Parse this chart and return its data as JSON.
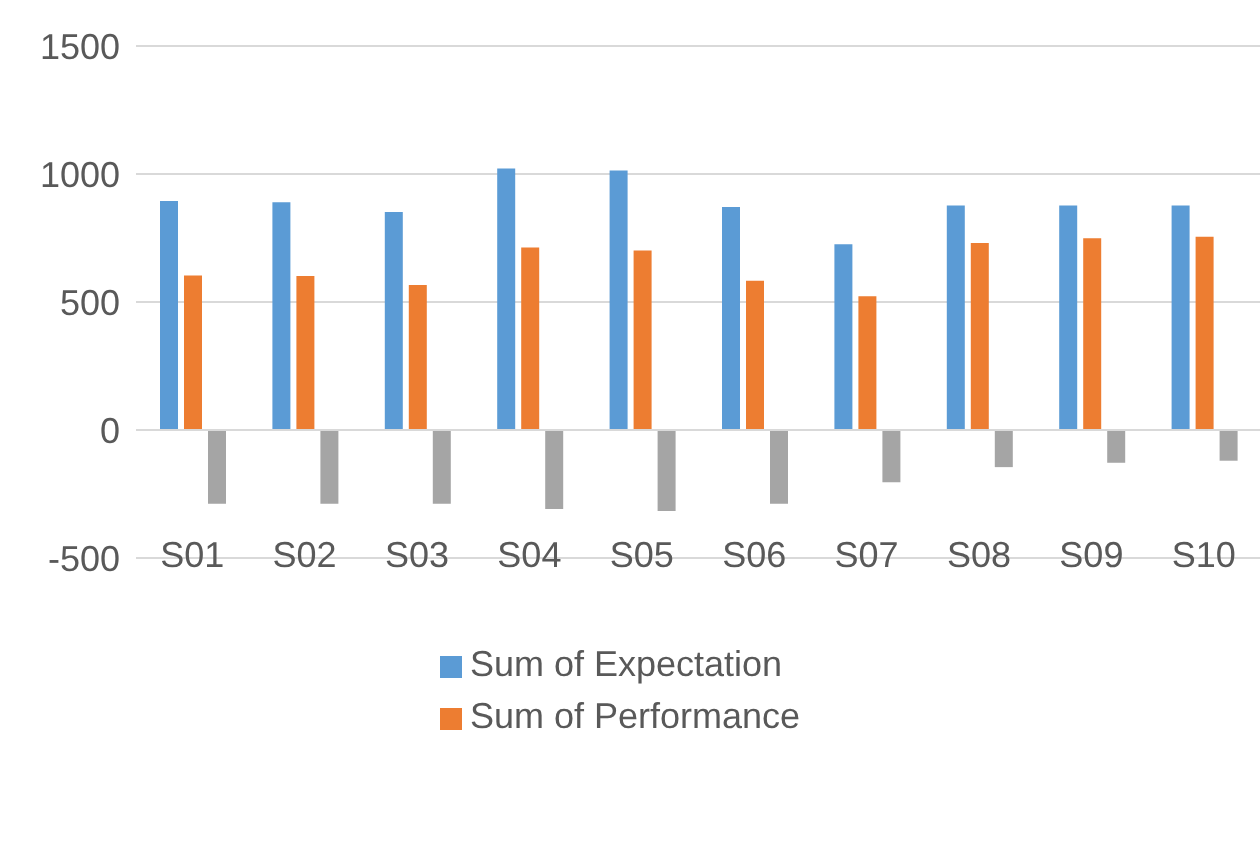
{
  "chart_data": {
    "type": "bar",
    "categories": [
      "S01",
      "S02",
      "S03",
      "S04",
      "S05",
      "S06",
      "S07",
      "S08",
      "S09",
      "S10"
    ],
    "series": [
      {
        "name": "Sum of Expectation",
        "color": "#5b9bd5",
        "values": [
          895,
          890,
          852,
          1021,
          1014,
          871,
          726,
          877,
          877,
          877
        ]
      },
      {
        "name": "Sum of Performance",
        "color": "#ed7d31",
        "values": [
          604,
          602,
          566,
          713,
          701,
          583,
          522,
          730,
          749,
          755
        ]
      },
      {
        "color": "#a5a5a5",
        "values": [
          -288,
          -288,
          -288,
          -309,
          -316,
          -288,
          -204,
          -145,
          -128,
          -120
        ]
      }
    ],
    "ylim": [
      -500,
      1500
    ],
    "yticks": [
      -500,
      0,
      500,
      1000,
      1500
    ],
    "grid": "y",
    "legend": "bottom"
  }
}
